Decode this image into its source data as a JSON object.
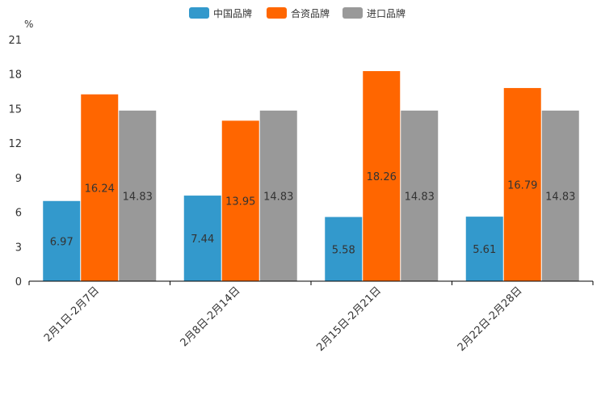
{
  "chart_data": {
    "type": "bar",
    "title": "",
    "ylabel": "%",
    "xlabel": "",
    "ylim": [
      0,
      21
    ],
    "yticks": [
      0,
      3,
      6,
      9,
      12,
      15,
      18,
      21
    ],
    "categories": [
      "2月1日-2月7日",
      "2月8日-2月14日",
      "2月15日-2月21日",
      "2月22日-2月28日"
    ],
    "series": [
      {
        "name": "中国品牌",
        "color": "#3399cc",
        "values": [
          6.97,
          7.44,
          5.58,
          5.61
        ]
      },
      {
        "name": "合资品牌",
        "color": "#ff6600",
        "values": [
          16.24,
          13.95,
          18.26,
          16.79
        ]
      },
      {
        "name": "进口品牌",
        "color": "#999999",
        "values": [
          14.83,
          14.83,
          14.83,
          14.83
        ]
      }
    ],
    "legend": "top-center",
    "grid": false
  }
}
